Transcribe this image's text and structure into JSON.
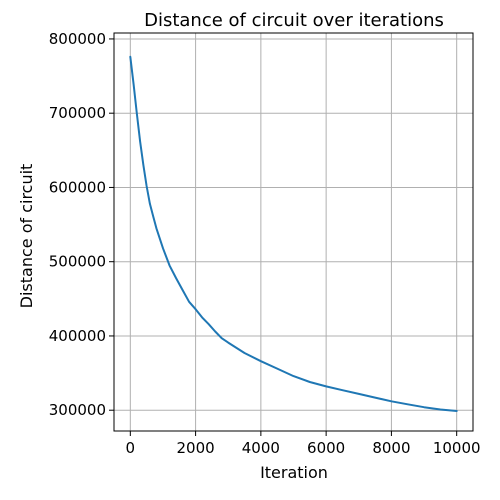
{
  "chart_data": {
    "type": "line",
    "title": "Distance of circuit over iterations",
    "xlabel": "Iteration",
    "ylabel": "Distance of circuit",
    "xlim": [
      -500,
      10500
    ],
    "ylim": [
      272000,
      808000
    ],
    "grid": true,
    "xticks": [
      0,
      2000,
      4000,
      6000,
      8000,
      10000
    ],
    "xtick_labels": [
      "0",
      "2000",
      "4000",
      "6000",
      "8000",
      "10000"
    ],
    "yticks": [
      300000,
      400000,
      500000,
      600000,
      700000,
      800000
    ],
    "ytick_labels": [
      "300000",
      "400000",
      "500000",
      "600000",
      "700000",
      "800000"
    ],
    "series": [
      {
        "color": "#1f77b4",
        "x": [
          0,
          100,
          200,
          300,
          400,
          500,
          600,
          700,
          800,
          1000,
          1200,
          1400,
          1600,
          1800,
          2000,
          2200,
          2400,
          2600,
          2800,
          3000,
          3500,
          4000,
          4500,
          5000,
          5500,
          6000,
          6500,
          7000,
          7500,
          8000,
          8500,
          9000,
          9500,
          10000
        ],
        "y": [
          776000,
          739000,
          700000,
          662000,
          630000,
          602000,
          578000,
          561000,
          545000,
          518000,
          495000,
          478000,
          462000,
          446000,
          436000,
          425000,
          416000,
          406000,
          397000,
          391000,
          377000,
          366000,
          356000,
          346000,
          338000,
          332000,
          327000,
          322000,
          317000,
          312000,
          308000,
          304000,
          301000,
          299000
        ]
      }
    ]
  }
}
